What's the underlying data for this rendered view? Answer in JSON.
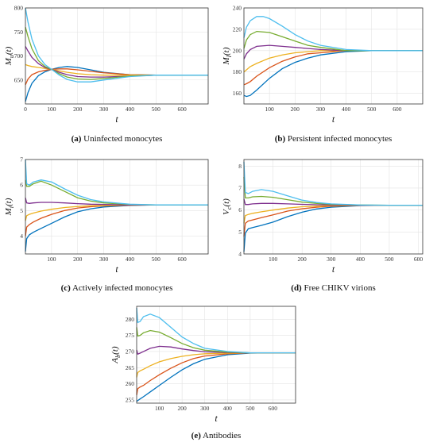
{
  "colors": [
    "#0072bd",
    "#d95319",
    "#edb120",
    "#7e2f8e",
    "#77ac30",
    "#4dbeee"
  ],
  "chart_data": [
    {
      "type": "line",
      "caption_letter": "(a)",
      "caption_text": " Uninfected monocytes",
      "ylabel_main": "M",
      "ylabel_sub": "u",
      "ylabel_tail": "(t)",
      "xlabel": "t",
      "xlim": [
        0,
        700
      ],
      "ylim": [
        600,
        800
      ],
      "xticks": [
        0,
        100,
        200,
        300,
        400,
        500,
        600
      ],
      "yticks": [
        650,
        700,
        750,
        800
      ],
      "series": [
        {
          "x": [
            0,
            10,
            25,
            50,
            75,
            100,
            130,
            160,
            200,
            250,
            300,
            400,
            500,
            600,
            700
          ],
          "y": [
            605,
            624,
            643,
            659,
            667,
            672,
            676,
            678,
            676,
            671,
            666,
            661,
            660,
            660,
            660
          ]
        },
        {
          "x": [
            0,
            10,
            25,
            50,
            75,
            100,
            130,
            160,
            200,
            250,
            300,
            400,
            500,
            600,
            700
          ],
          "y": [
            640,
            652,
            661,
            667,
            670,
            672,
            673,
            673,
            671,
            668,
            665,
            661,
            660,
            660,
            660
          ]
        },
        {
          "x": [
            0,
            10,
            25,
            50,
            75,
            100,
            130,
            160,
            200,
            250,
            300,
            400,
            500,
            600,
            700
          ],
          "y": [
            682,
            680,
            678,
            676,
            674,
            672,
            669,
            666,
            663,
            661,
            660,
            660,
            660,
            660,
            660
          ]
        },
        {
          "x": [
            0,
            10,
            25,
            50,
            75,
            100,
            130,
            160,
            200,
            250,
            300,
            400,
            500,
            600,
            700
          ],
          "y": [
            720,
            710,
            697,
            684,
            676,
            672,
            666,
            661,
            657,
            656,
            656,
            658,
            660,
            660,
            660
          ]
        },
        {
          "x": [
            0,
            10,
            25,
            50,
            75,
            100,
            130,
            160,
            200,
            250,
            300,
            400,
            500,
            600,
            700
          ],
          "y": [
            760,
            740,
            715,
            690,
            678,
            672,
            663,
            656,
            652,
            651,
            653,
            658,
            660,
            660,
            660
          ]
        },
        {
          "x": [
            0,
            10,
            25,
            50,
            75,
            100,
            130,
            160,
            200,
            250,
            300,
            400,
            500,
            600,
            700
          ],
          "y": [
            800,
            770,
            735,
            700,
            682,
            672,
            660,
            651,
            646,
            646,
            650,
            657,
            660,
            660,
            660
          ]
        }
      ]
    },
    {
      "type": "line",
      "caption_letter": "(b)",
      "caption_text": " Persistent infected monocytes",
      "ylabel_main": "M",
      "ylabel_sub": "l",
      "ylabel_tail": "(t)",
      "xlabel": "t",
      "xlim": [
        0,
        700
      ],
      "ylim": [
        150,
        240
      ],
      "xticks": [
        100,
        200,
        300,
        400,
        500,
        600
      ],
      "yticks": [
        160,
        180,
        200,
        220,
        240
      ],
      "series": [
        {
          "x": [
            0,
            10,
            25,
            50,
            100,
            150,
            200,
            250,
            300,
            400,
            500,
            600,
            700
          ],
          "y": [
            158,
            157,
            158,
            163,
            174,
            183,
            189,
            193,
            196,
            199,
            200,
            200,
            200
          ]
        },
        {
          "x": [
            0,
            10,
            25,
            50,
            100,
            150,
            200,
            250,
            300,
            400,
            500,
            600,
            700
          ],
          "y": [
            168,
            169,
            171,
            176,
            184,
            190,
            194,
            197,
            198,
            200,
            200,
            200,
            200
          ]
        },
        {
          "x": [
            0,
            10,
            25,
            50,
            100,
            150,
            200,
            250,
            300,
            400,
            500,
            600,
            700
          ],
          "y": [
            180,
            182,
            185,
            188,
            193,
            196,
            198,
            199,
            200,
            200,
            200,
            200,
            200
          ]
        },
        {
          "x": [
            0,
            10,
            25,
            50,
            100,
            150,
            200,
            250,
            300,
            400,
            500,
            600,
            700
          ],
          "y": [
            192,
            197,
            201,
            204,
            205,
            204,
            203,
            202,
            201,
            200,
            200,
            200,
            200
          ]
        },
        {
          "x": [
            0,
            10,
            25,
            50,
            100,
            150,
            200,
            250,
            300,
            400,
            500,
            600,
            700
          ],
          "y": [
            202,
            210,
            215,
            218,
            217,
            213,
            209,
            205,
            203,
            200,
            200,
            200,
            200
          ]
        },
        {
          "x": [
            0,
            10,
            25,
            50,
            75,
            100,
            150,
            200,
            250,
            300,
            400,
            500,
            600,
            700
          ],
          "y": [
            212,
            222,
            228,
            232,
            232,
            230,
            223,
            215,
            209,
            205,
            201,
            200,
            200,
            200
          ]
        }
      ]
    },
    {
      "type": "line",
      "caption_letter": "(c)",
      "caption_text": " Actively infected monocytes",
      "ylabel_main": "M",
      "ylabel_sub": "i",
      "ylabel_tail": "(t)",
      "xlabel": "t",
      "xlim": [
        0,
        700
      ],
      "ylim": [
        3.3,
        7
      ],
      "xticks": [
        100,
        200,
        300,
        400,
        500,
        600
      ],
      "yticks": [
        4,
        5,
        6,
        7
      ],
      "series": [
        {
          "x": [
            0,
            5,
            15,
            30,
            60,
            100,
            150,
            200,
            250,
            300,
            400,
            500,
            600,
            700
          ],
          "y": [
            3.4,
            3.9,
            4.05,
            4.15,
            4.3,
            4.5,
            4.75,
            4.95,
            5.07,
            5.14,
            5.2,
            5.22,
            5.22,
            5.22
          ]
        },
        {
          "x": [
            0,
            5,
            15,
            30,
            60,
            100,
            150,
            200,
            250,
            300,
            400,
            500,
            600,
            700
          ],
          "y": [
            4.0,
            4.35,
            4.45,
            4.55,
            4.7,
            4.85,
            5.0,
            5.1,
            5.15,
            5.18,
            5.21,
            5.22,
            5.22,
            5.22
          ]
        },
        {
          "x": [
            0,
            5,
            15,
            30,
            60,
            100,
            150,
            200,
            250,
            300,
            400,
            500,
            600,
            700
          ],
          "y": [
            4.6,
            4.8,
            4.85,
            4.9,
            4.98,
            5.05,
            5.12,
            5.16,
            5.19,
            5.2,
            5.22,
            5.22,
            5.22,
            5.22
          ]
        },
        {
          "x": [
            0,
            5,
            15,
            30,
            60,
            100,
            150,
            200,
            250,
            300,
            400,
            500,
            600,
            700
          ],
          "y": [
            5.5,
            5.3,
            5.28,
            5.3,
            5.32,
            5.32,
            5.3,
            5.27,
            5.25,
            5.24,
            5.22,
            5.22,
            5.22,
            5.22
          ]
        },
        {
          "x": [
            0,
            5,
            15,
            30,
            60,
            100,
            150,
            200,
            250,
            300,
            400,
            500,
            600,
            700
          ],
          "y": [
            6.2,
            5.95,
            5.95,
            6.05,
            6.15,
            6.0,
            5.75,
            5.5,
            5.37,
            5.3,
            5.24,
            5.22,
            5.22,
            5.22
          ]
        },
        {
          "x": [
            0,
            5,
            15,
            30,
            60,
            100,
            150,
            200,
            250,
            300,
            400,
            500,
            600,
            700
          ],
          "y": [
            7.0,
            6.05,
            6.0,
            6.12,
            6.2,
            6.12,
            5.85,
            5.6,
            5.43,
            5.34,
            5.25,
            5.22,
            5.22,
            5.22
          ]
        }
      ]
    },
    {
      "type": "line",
      "caption_letter": "(d)",
      "caption_text": " Free CHIKV virions",
      "ylabel_main": "V",
      "ylabel_sub": "c",
      "ylabel_tail": "(t)",
      "xlabel": "t",
      "xlim": [
        0,
        615
      ],
      "ylim": [
        4,
        8.3
      ],
      "xticks": [
        100,
        200,
        300,
        400,
        500,
        600
      ],
      "yticks": [
        4,
        5,
        6,
        7,
        8
      ],
      "series": [
        {
          "x": [
            0,
            5,
            15,
            30,
            60,
            100,
            150,
            200,
            250,
            300,
            400,
            500,
            615
          ],
          "y": [
            4.1,
            4.95,
            5.15,
            5.2,
            5.3,
            5.45,
            5.7,
            5.9,
            6.05,
            6.13,
            6.2,
            6.22,
            6.22
          ]
        },
        {
          "x": [
            0,
            5,
            15,
            30,
            60,
            100,
            150,
            200,
            250,
            300,
            400,
            500,
            615
          ],
          "y": [
            4.8,
            5.4,
            5.5,
            5.55,
            5.65,
            5.78,
            5.95,
            6.06,
            6.13,
            6.17,
            6.21,
            6.22,
            6.22
          ]
        },
        {
          "x": [
            0,
            5,
            15,
            30,
            60,
            100,
            150,
            200,
            250,
            300,
            400,
            500,
            615
          ],
          "y": [
            5.4,
            5.75,
            5.8,
            5.85,
            5.92,
            6.0,
            6.09,
            6.15,
            6.18,
            6.2,
            6.22,
            6.22,
            6.22
          ]
        },
        {
          "x": [
            0,
            5,
            15,
            30,
            60,
            100,
            150,
            200,
            250,
            300,
            400,
            500,
            615
          ],
          "y": [
            6.5,
            6.25,
            6.25,
            6.28,
            6.3,
            6.3,
            6.28,
            6.26,
            6.24,
            6.23,
            6.22,
            6.22,
            6.22
          ]
        },
        {
          "x": [
            0,
            5,
            15,
            30,
            60,
            100,
            150,
            200,
            250,
            300,
            400,
            500,
            615
          ],
          "y": [
            7.5,
            6.55,
            6.55,
            6.6,
            6.62,
            6.58,
            6.47,
            6.36,
            6.3,
            6.26,
            6.23,
            6.22,
            6.22
          ]
        },
        {
          "x": [
            0,
            5,
            15,
            30,
            60,
            100,
            150,
            200,
            250,
            300,
            400,
            500,
            615
          ],
          "y": [
            8.2,
            6.8,
            6.75,
            6.85,
            6.93,
            6.85,
            6.65,
            6.45,
            6.34,
            6.28,
            6.23,
            6.22,
            6.22
          ]
        }
      ]
    },
    {
      "type": "line",
      "caption_letter": "(e)",
      "caption_text": " Antibodies",
      "ylabel_main": "A",
      "ylabel_sub": "b",
      "ylabel_tail": "(t)",
      "xlabel": "t",
      "xlim": [
        0,
        700
      ],
      "ylim": [
        254,
        284
      ],
      "xticks": [
        100,
        200,
        300,
        400,
        500,
        600
      ],
      "yticks": [
        255,
        260,
        265,
        270,
        275,
        280
      ],
      "series": [
        {
          "x": [
            0,
            5,
            15,
            30,
            60,
            100,
            150,
            200,
            250,
            300,
            400,
            500,
            600,
            700
          ],
          "y": [
            254.5,
            254.8,
            255.3,
            256.0,
            257.5,
            259.5,
            262.0,
            264.3,
            266.2,
            267.6,
            269.0,
            269.5,
            269.6,
            269.6
          ]
        },
        {
          "x": [
            0,
            5,
            15,
            30,
            60,
            100,
            150,
            200,
            250,
            300,
            400,
            500,
            600,
            700
          ],
          "y": [
            256.5,
            258.5,
            259.0,
            259.5,
            261.0,
            262.8,
            264.8,
            266.5,
            267.8,
            268.6,
            269.3,
            269.6,
            269.6,
            269.6
          ]
        },
        {
          "x": [
            0,
            5,
            15,
            30,
            60,
            100,
            150,
            200,
            250,
            300,
            400,
            500,
            600,
            700
          ],
          "y": [
            262.0,
            263.5,
            264.0,
            264.5,
            265.6,
            266.8,
            267.8,
            268.5,
            269.0,
            269.3,
            269.5,
            269.6,
            269.6,
            269.6
          ]
        },
        {
          "x": [
            0,
            5,
            15,
            30,
            60,
            100,
            150,
            200,
            250,
            300,
            400,
            500,
            600,
            700
          ],
          "y": [
            270.5,
            269.2,
            269.5,
            270.0,
            271.0,
            271.6,
            271.4,
            270.8,
            270.3,
            269.9,
            269.7,
            269.6,
            269.6,
            269.6
          ]
        },
        {
          "x": [
            0,
            5,
            15,
            30,
            60,
            100,
            150,
            200,
            250,
            300,
            400,
            500,
            600,
            700
          ],
          "y": [
            277.5,
            274.8,
            275.0,
            275.8,
            276.5,
            276.0,
            274.3,
            272.5,
            271.2,
            270.4,
            269.8,
            269.6,
            269.6,
            269.6
          ]
        },
        {
          "x": [
            0,
            5,
            15,
            30,
            60,
            100,
            150,
            200,
            250,
            300,
            400,
            500,
            600,
            700
          ],
          "y": [
            283.5,
            279.0,
            279.3,
            280.8,
            281.6,
            280.5,
            277.5,
            274.5,
            272.5,
            271.0,
            270.0,
            269.6,
            269.6,
            269.6
          ]
        }
      ]
    }
  ]
}
